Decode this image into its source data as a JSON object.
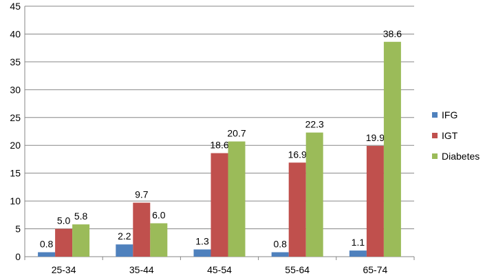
{
  "chart_data": {
    "type": "bar",
    "categories": [
      "25-34",
      "35-44",
      "45-54",
      "55-64",
      "65-74"
    ],
    "series": [
      {
        "name": "IFG",
        "values": [
          0.8,
          2.2,
          1.3,
          0.8,
          1.1
        ],
        "color": "#4f81bd"
      },
      {
        "name": "IGT",
        "values": [
          5.0,
          9.7,
          18.6,
          16.9,
          19.9
        ],
        "color": "#c0504d"
      },
      {
        "name": "Diabetes",
        "values": [
          5.8,
          6.0,
          20.7,
          22.3,
          38.6
        ],
        "color": "#9bbb59"
      }
    ],
    "data_labels": [
      [
        "0.8",
        "2.2",
        "1.3",
        "0.8",
        "1.1"
      ],
      [
        "5.0",
        "9.7",
        "18.6",
        "16.9",
        "19.9"
      ],
      [
        "5.8",
        "6.0",
        "20.7",
        "22.3",
        "38.6"
      ]
    ],
    "ylim": [
      0,
      45
    ],
    "yticks": [
      "0",
      "5",
      "10",
      "15",
      "20",
      "25",
      "30",
      "35",
      "40",
      "45"
    ],
    "grid": true,
    "legend_position": "right"
  }
}
